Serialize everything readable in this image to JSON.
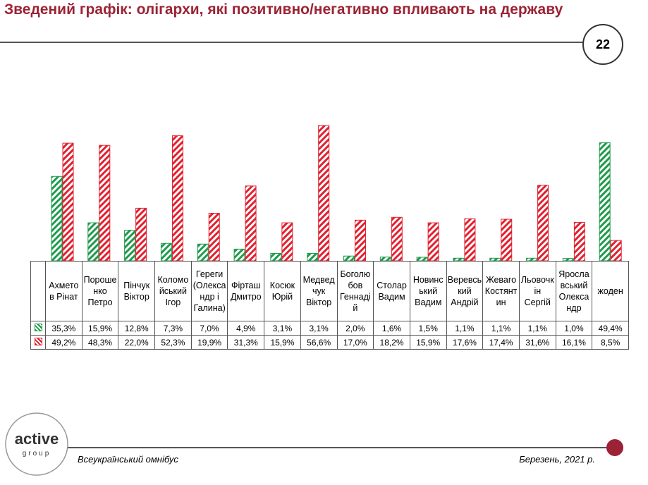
{
  "header": {
    "title": "Зведений графік: олігархи, які позитивно/негативно впливають на державу"
  },
  "page_number": "22",
  "chart_data": {
    "type": "bar",
    "categories": [
      "Ахметов Рінат",
      "Порошенко Петро",
      "Пінчук Віктор",
      "Коломойський Ігор",
      "Гереги (Олександр і Галина)",
      "Фірташ Дмитро",
      "Косюк Юрій",
      "Медведчук Віктор",
      "Боголюбов Геннадій",
      "Столар Вадим",
      "Новинський Вадим",
      "Веревський Андрій",
      "Жеваго Костянтин",
      "Льовочкін Сергій",
      "Ярославський Олександр",
      "жоден"
    ],
    "series": [
      {
        "color": "#1e9b4b",
        "values": [
          35.3,
          15.9,
          12.8,
          7.3,
          7.0,
          4.9,
          3.1,
          3.1,
          2.0,
          1.6,
          1.5,
          1.1,
          1.1,
          1.1,
          1.0,
          49.4
        ],
        "value_labels": [
          "35,3%",
          "15,9%",
          "12,8%",
          "7,3%",
          "7,0%",
          "4,9%",
          "3,1%",
          "3,1%",
          "2,0%",
          "1,6%",
          "1,5%",
          "1,1%",
          "1,1%",
          "1,1%",
          "1,0%",
          "49,4%"
        ]
      },
      {
        "color": "#e2202f",
        "values": [
          49.2,
          48.3,
          22.0,
          52.3,
          19.9,
          31.3,
          15.9,
          56.6,
          17.0,
          18.2,
          15.9,
          17.6,
          17.4,
          31.6,
          16.1,
          8.5
        ],
        "value_labels": [
          "49,2%",
          "48,3%",
          "22,0%",
          "52,3%",
          "19,9%",
          "31,3%",
          "15,9%",
          "56,6%",
          "17,0%",
          "18,2%",
          "15,9%",
          "17,6%",
          "17,4%",
          "31,6%",
          "16,1%",
          "8,5%"
        ]
      }
    ]
  },
  "logo": {
    "name": "active",
    "sub": "group"
  },
  "footer": {
    "left": "Всеукраїнський омнібус",
    "right": "Березень, 2021 р."
  }
}
